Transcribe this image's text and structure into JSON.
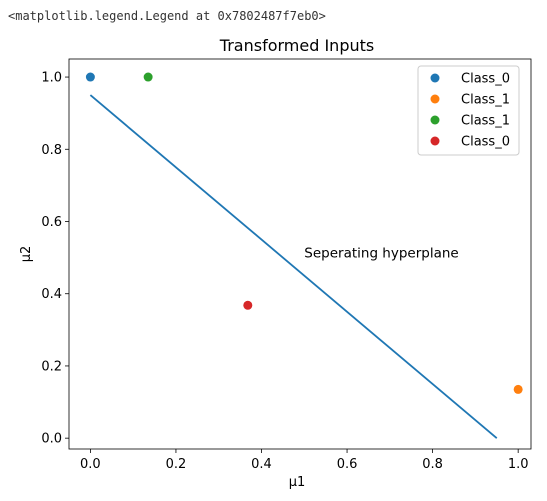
{
  "output_text": "<matplotlib.legend.Legend at 0x7802487f7eb0>",
  "chart_data": {
    "type": "scatter",
    "title": "Transformed Inputs",
    "xlabel": "μ1",
    "ylabel": "μ2",
    "xlim": [
      -0.05,
      1.03
    ],
    "ylim": [
      -0.03,
      1.05
    ],
    "xticks": [
      0.0,
      0.2,
      0.4,
      0.6,
      0.8,
      1.0
    ],
    "yticks": [
      0.0,
      0.2,
      0.4,
      0.6,
      0.8,
      1.0
    ],
    "xtick_labels": [
      "0.0",
      "0.2",
      "0.4",
      "0.6",
      "0.8",
      "1.0"
    ],
    "ytick_labels": [
      "0.0",
      "0.2",
      "0.4",
      "0.6",
      "0.8",
      "1.0"
    ],
    "grid": false,
    "legend_placement": "upper right",
    "series": [
      {
        "name": "Class_0",
        "color": "#1f77b4",
        "points": [
          [
            0.0,
            1.0
          ]
        ]
      },
      {
        "name": "Class_1",
        "color": "#ff7f0e",
        "points": [
          [
            1.0,
            0.135
          ]
        ]
      },
      {
        "name": "Class_1",
        "color": "#2ca02c",
        "points": [
          [
            0.135,
            1.0
          ]
        ]
      },
      {
        "name": "Class_0",
        "color": "#d62728",
        "points": [
          [
            0.368,
            0.368
          ]
        ]
      }
    ],
    "line": {
      "color": "#1f77b4",
      "points": [
        [
          0.0,
          0.95
        ],
        [
          0.95,
          0.0
        ]
      ]
    },
    "annotation": {
      "text": "Seperating hyperplane",
      "x": 0.5,
      "y": 0.5
    }
  }
}
